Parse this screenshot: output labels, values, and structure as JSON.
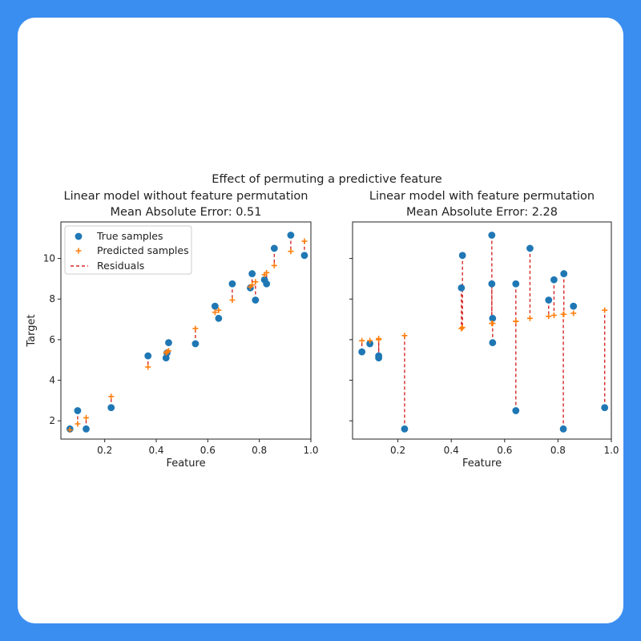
{
  "colors": {
    "background": "#3a8ef0",
    "card": "#ffffff",
    "true_marker": "#1f77b4",
    "predicted_marker": "#ff7f0e",
    "residual_line": "#d62728"
  },
  "chart_data": [
    {
      "type": "scatter",
      "suptitle": "Effect of permuting a predictive feature",
      "title": "Linear model without feature permutation",
      "subtitle": "Mean Absolute Error: 0.51",
      "xlabel": "Feature",
      "ylabel": "Target",
      "xlim": [
        0.03,
        1.0
      ],
      "ylim": [
        1.1,
        11.8
      ],
      "xticks": [
        0.2,
        0.4,
        0.6,
        0.8,
        1.0
      ],
      "xtick_labels": [
        "0.2",
        "0.4",
        "0.6",
        "0.8",
        "1.0"
      ],
      "yticks": [
        2,
        4,
        6,
        8,
        10
      ],
      "ytick_labels": [
        "2",
        "4",
        "6",
        "8",
        "10"
      ],
      "grid": false,
      "legend": {
        "placement": "upper-left",
        "entries": [
          "True samples",
          "Predicted samples",
          "Residuals"
        ]
      },
      "series": [
        {
          "name": "True samples",
          "x": [
            0.065,
            0.095,
            0.128,
            0.225,
            0.368,
            0.438,
            0.442,
            0.448,
            0.552,
            0.628,
            0.642,
            0.695,
            0.765,
            0.772,
            0.785,
            0.82,
            0.828,
            0.858,
            0.922,
            0.975
          ],
          "y": [
            1.6,
            2.5,
            1.6,
            2.65,
            5.2,
            5.1,
            5.35,
            5.85,
            5.8,
            7.65,
            7.05,
            8.75,
            8.55,
            9.25,
            7.95,
            8.95,
            8.75,
            10.5,
            11.15,
            10.15
          ]
        },
        {
          "name": "Predicted samples",
          "x": [
            0.065,
            0.095,
            0.128,
            0.225,
            0.368,
            0.438,
            0.442,
            0.448,
            0.552,
            0.628,
            0.642,
            0.695,
            0.765,
            0.772,
            0.785,
            0.82,
            0.828,
            0.858,
            0.922,
            0.975
          ],
          "y": [
            1.55,
            1.85,
            2.15,
            3.2,
            4.65,
            5.35,
            5.4,
            5.45,
            6.55,
            7.35,
            7.45,
            7.95,
            8.6,
            8.7,
            8.85,
            9.2,
            9.3,
            9.65,
            10.35,
            10.85
          ]
        }
      ]
    },
    {
      "type": "scatter",
      "title": "Linear model with feature permutation",
      "subtitle": "Mean Absolute Error: 2.28",
      "xlabel": "Feature",
      "ylabel": "",
      "xlim": [
        0.03,
        1.0
      ],
      "ylim": [
        1.1,
        11.8
      ],
      "xticks": [
        0.2,
        0.4,
        0.6,
        0.8,
        1.0
      ],
      "xtick_labels": [
        "0.2",
        "0.4",
        "0.6",
        "0.8",
        "1.0"
      ],
      "yticks": [
        2,
        4,
        6,
        8,
        10
      ],
      "ytick_labels": [],
      "grid": false,
      "series": [
        {
          "name": "True samples",
          "x": [
            0.065,
            0.095,
            0.128,
            0.128,
            0.225,
            0.438,
            0.442,
            0.552,
            0.552,
            0.555,
            0.555,
            0.642,
            0.642,
            0.695,
            0.765,
            0.785,
            0.82,
            0.822,
            0.858,
            0.975
          ],
          "y": [
            5.4,
            5.8,
            5.2,
            5.1,
            1.6,
            8.55,
            10.15,
            11.15,
            8.75,
            7.05,
            5.85,
            8.75,
            2.5,
            10.5,
            7.95,
            8.95,
            1.6,
            9.25,
            7.65,
            2.65
          ]
        },
        {
          "name": "Predicted samples",
          "x": [
            0.065,
            0.095,
            0.128,
            0.128,
            0.225,
            0.438,
            0.442,
            0.552,
            0.552,
            0.555,
            0.555,
            0.642,
            0.642,
            0.695,
            0.765,
            0.785,
            0.82,
            0.822,
            0.858,
            0.975
          ],
          "y": [
            5.95,
            5.95,
            6.0,
            6.05,
            6.2,
            6.55,
            6.6,
            6.8,
            6.8,
            6.8,
            6.8,
            6.9,
            6.9,
            7.05,
            7.15,
            7.2,
            7.25,
            7.25,
            7.3,
            7.45
          ]
        }
      ]
    }
  ]
}
